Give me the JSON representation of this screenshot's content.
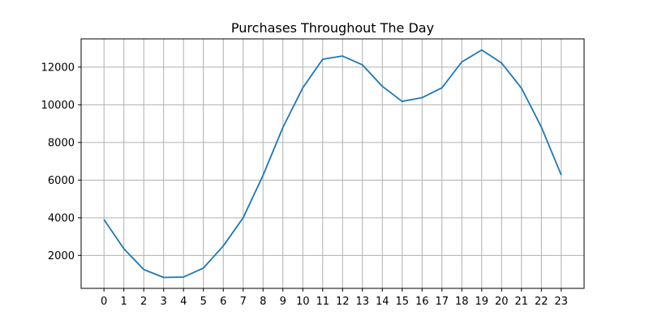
{
  "chart_data": {
    "type": "line",
    "title": "Purchases Throughout The Day",
    "xlabel": "",
    "ylabel": "",
    "x": [
      0,
      1,
      2,
      3,
      4,
      5,
      6,
      7,
      8,
      9,
      10,
      11,
      12,
      13,
      14,
      15,
      16,
      17,
      18,
      19,
      20,
      21,
      22,
      23
    ],
    "series": [
      {
        "color": "#1f77b4",
        "values": [
          3900,
          2350,
          1250,
          830,
          850,
          1330,
          2500,
          4000,
          6250,
          8800,
          10900,
          12420,
          12590,
          12120,
          10980,
          10180,
          10380,
          10900,
          12280,
          12910,
          12220,
          10880,
          8820,
          6270
        ]
      }
    ],
    "xticks": [
      "0",
      "1",
      "2",
      "3",
      "4",
      "5",
      "6",
      "7",
      "8",
      "9",
      "10",
      "11",
      "12",
      "13",
      "14",
      "15",
      "16",
      "17",
      "18",
      "19",
      "20",
      "21",
      "22",
      "23"
    ],
    "yticks": [
      2000,
      4000,
      6000,
      8000,
      10000,
      12000
    ],
    "xlim": [
      -1.15,
      24.15
    ],
    "ylim": [
      250,
      13500
    ],
    "grid": true,
    "legend": "none"
  }
}
